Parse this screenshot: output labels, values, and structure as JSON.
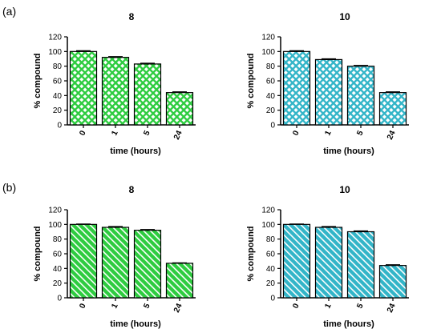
{
  "panel_labels": [
    "(a)",
    "(b)"
  ],
  "colors": {
    "green": "#2ecc40",
    "cyan": "#33b5c8",
    "outline": "#000000"
  },
  "chart_data": [
    {
      "type": "bar",
      "panel": "(a)",
      "title": "8",
      "pattern": "crosshatch",
      "color": "#2ecc40",
      "categories": [
        "0",
        "1",
        "5",
        "24"
      ],
      "values": [
        100,
        92,
        83,
        44
      ],
      "errors": [
        1,
        1,
        1,
        1
      ],
      "xlabel": "time (hours)",
      "ylabel": "% compound",
      "ylim": [
        0,
        120
      ],
      "yticks": [
        "0",
        "20",
        "40",
        "60",
        "80",
        "100",
        "120"
      ]
    },
    {
      "type": "bar",
      "panel": "(a)",
      "title": "10",
      "pattern": "crosshatch",
      "color": "#33b5c8",
      "categories": [
        "0",
        "1",
        "5",
        "24"
      ],
      "values": [
        100,
        89,
        80,
        44
      ],
      "errors": [
        1,
        1,
        1,
        1
      ],
      "xlabel": "time (hours)",
      "ylabel": "% compound",
      "ylim": [
        0,
        120
      ],
      "yticks": [
        "0",
        "20",
        "40",
        "60",
        "80",
        "100",
        "120"
      ]
    },
    {
      "type": "bar",
      "panel": "(b)",
      "title": "8",
      "pattern": "diagonal",
      "color": "#2ecc40",
      "categories": [
        "0",
        "1",
        "5",
        "24"
      ],
      "values": [
        100,
        96,
        92,
        47
      ],
      "errors": [
        0.5,
        1,
        1,
        0.5
      ],
      "xlabel": "time (hours)",
      "ylabel": "% compound",
      "ylim": [
        0,
        120
      ],
      "yticks": [
        "0",
        "20",
        "40",
        "60",
        "80",
        "100",
        "120"
      ]
    },
    {
      "type": "bar",
      "panel": "(b)",
      "title": "10",
      "pattern": "diagonal",
      "color": "#33b5c8",
      "categories": [
        "0",
        "1",
        "5",
        "24"
      ],
      "values": [
        100,
        96,
        90,
        44
      ],
      "errors": [
        0.5,
        1,
        1,
        1
      ],
      "xlabel": "time (hours)",
      "ylabel": "% compound",
      "ylim": [
        0,
        120
      ],
      "yticks": [
        "0",
        "20",
        "40",
        "60",
        "80",
        "100",
        "120"
      ]
    }
  ]
}
